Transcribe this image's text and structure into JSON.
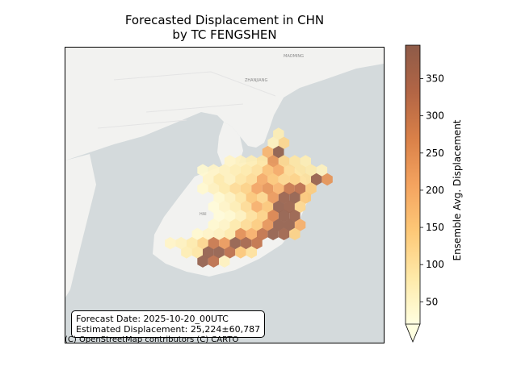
{
  "title": {
    "line1": "Forecasted Displacement in CHN",
    "line2": "by TC FENGSHEN"
  },
  "info": {
    "forecast_date": "Forecast Date: 2025-10-20_00UTC",
    "estimated": "Estimated Displacement: 25,224±60,787"
  },
  "attribution": "(C) OpenStreetMap contributors (C) CARTO",
  "map_labels": {
    "top_city": "MAOMING",
    "zhanjiang": "ZHANJIANG",
    "hai": "HAI"
  },
  "colorbar": {
    "label": "Ensemble Avg. Displacement",
    "min": 20,
    "max": 395,
    "ticks": [
      50,
      100,
      150,
      200,
      250,
      300,
      350
    ],
    "extend": "min",
    "colors": [
      "#ffffe0",
      "#fee9a8",
      "#fdc877",
      "#f4a35f",
      "#d98048",
      "#b26545",
      "#8e5b48"
    ]
  },
  "chart_data": {
    "type": "hexbin",
    "title": "Forecasted Displacement in CHN\nby TC FENGSHEN",
    "colorbar_label": "Ensemble Avg. Displacement",
    "value_range": [
      20,
      395
    ],
    "cells": [
      {
        "col": 2,
        "row": 0,
        "v": 70
      },
      {
        "col": 1,
        "row": 1,
        "v": 60
      },
      {
        "col": 2,
        "row": 1,
        "v": 120
      },
      {
        "col": 1,
        "row": 2,
        "v": 180
      },
      {
        "col": 2,
        "row": 2,
        "v": 395
      },
      {
        "col": -3,
        "row": 3,
        "v": 50
      },
      {
        "col": -2,
        "row": 3,
        "v": 60
      },
      {
        "col": -1,
        "row": 3,
        "v": 70
      },
      {
        "col": 0,
        "row": 3,
        "v": 90
      },
      {
        "col": 1,
        "row": 3,
        "v": 240
      },
      {
        "col": 2,
        "row": 3,
        "v": 120
      },
      {
        "col": 3,
        "row": 3,
        "v": 90
      },
      {
        "col": 4,
        "row": 3,
        "v": 70
      },
      {
        "col": -5,
        "row": 4,
        "v": 40
      },
      {
        "col": -4,
        "row": 4,
        "v": 50
      },
      {
        "col": -3,
        "row": 4,
        "v": 60
      },
      {
        "col": -2,
        "row": 4,
        "v": 70
      },
      {
        "col": -1,
        "row": 4,
        "v": 80
      },
      {
        "col": 0,
        "row": 4,
        "v": 100
      },
      {
        "col": 1,
        "row": 4,
        "v": 160
      },
      {
        "col": 2,
        "row": 4,
        "v": 200
      },
      {
        "col": 3,
        "row": 4,
        "v": 110
      },
      {
        "col": 4,
        "row": 4,
        "v": 90
      },
      {
        "col": 5,
        "row": 4,
        "v": 80
      },
      {
        "col": 6,
        "row": 4,
        "v": 60
      },
      {
        "col": -5,
        "row": 5,
        "v": 50
      },
      {
        "col": -4,
        "row": 5,
        "v": 80
      },
      {
        "col": -3,
        "row": 5,
        "v": 60
      },
      {
        "col": -2,
        "row": 5,
        "v": 90
      },
      {
        "col": -1,
        "row": 5,
        "v": 110
      },
      {
        "col": 0,
        "row": 5,
        "v": 200
      },
      {
        "col": 1,
        "row": 5,
        "v": 150
      },
      {
        "col": 2,
        "row": 5,
        "v": 120
      },
      {
        "col": 3,
        "row": 5,
        "v": 130
      },
      {
        "col": 4,
        "row": 5,
        "v": 100
      },
      {
        "col": 5,
        "row": 5,
        "v": 380
      },
      {
        "col": 6,
        "row": 5,
        "v": 240
      },
      {
        "col": -5,
        "row": 6,
        "v": 40
      },
      {
        "col": -4,
        "row": 6,
        "v": 60
      },
      {
        "col": -3,
        "row": 6,
        "v": 80
      },
      {
        "col": -2,
        "row": 6,
        "v": 110
      },
      {
        "col": -1,
        "row": 6,
        "v": 130
      },
      {
        "col": 0,
        "row": 6,
        "v": 210
      },
      {
        "col": 1,
        "row": 6,
        "v": 240
      },
      {
        "col": 2,
        "row": 6,
        "v": 180
      },
      {
        "col": 3,
        "row": 6,
        "v": 300
      },
      {
        "col": 4,
        "row": 6,
        "v": 320
      },
      {
        "col": 5,
        "row": 6,
        "v": 140
      },
      {
        "col": -4,
        "row": 7,
        "v": 40
      },
      {
        "col": -3,
        "row": 7,
        "v": 60
      },
      {
        "col": -2,
        "row": 7,
        "v": 90
      },
      {
        "col": -1,
        "row": 7,
        "v": 150
      },
      {
        "col": 0,
        "row": 7,
        "v": 120
      },
      {
        "col": 1,
        "row": 7,
        "v": 230
      },
      {
        "col": 2,
        "row": 7,
        "v": 380
      },
      {
        "col": 3,
        "row": 7,
        "v": 390
      },
      {
        "col": 4,
        "row": 7,
        "v": 150
      },
      {
        "col": -4,
        "row": 8,
        "v": 30
      },
      {
        "col": -3,
        "row": 8,
        "v": 50
      },
      {
        "col": -2,
        "row": 8,
        "v": 70
      },
      {
        "col": -1,
        "row": 8,
        "v": 110
      },
      {
        "col": 0,
        "row": 8,
        "v": 190
      },
      {
        "col": 1,
        "row": 8,
        "v": 150
      },
      {
        "col": 2,
        "row": 8,
        "v": 390
      },
      {
        "col": 3,
        "row": 8,
        "v": 380
      },
      {
        "col": 4,
        "row": 8,
        "v": 120
      },
      {
        "col": -4,
        "row": 9,
        "v": 30
      },
      {
        "col": -3,
        "row": 9,
        "v": 40
      },
      {
        "col": -2,
        "row": 9,
        "v": 60
      },
      {
        "col": -1,
        "row": 9,
        "v": 100
      },
      {
        "col": 0,
        "row": 9,
        "v": 130
      },
      {
        "col": 1,
        "row": 9,
        "v": 270
      },
      {
        "col": 2,
        "row": 9,
        "v": 390
      },
      {
        "col": 3,
        "row": 9,
        "v": 380
      },
      {
        "col": -4,
        "row": 10,
        "v": 40
      },
      {
        "col": -3,
        "row": 10,
        "v": 50
      },
      {
        "col": -2,
        "row": 10,
        "v": 80
      },
      {
        "col": -1,
        "row": 10,
        "v": 110
      },
      {
        "col": 0,
        "row": 10,
        "v": 140
      },
      {
        "col": 1,
        "row": 10,
        "v": 240
      },
      {
        "col": 2,
        "row": 10,
        "v": 390
      },
      {
        "col": 3,
        "row": 10,
        "v": 390
      },
      {
        "col": 4,
        "row": 10,
        "v": 190
      },
      {
        "col": -6,
        "row": 11,
        "v": 40
      },
      {
        "col": -5,
        "row": 11,
        "v": 50
      },
      {
        "col": -4,
        "row": 11,
        "v": 60
      },
      {
        "col": -3,
        "row": 11,
        "v": 80
      },
      {
        "col": -2,
        "row": 11,
        "v": 250
      },
      {
        "col": -1,
        "row": 11,
        "v": 190
      },
      {
        "col": 0,
        "row": 11,
        "v": 310
      },
      {
        "col": 1,
        "row": 11,
        "v": 390
      },
      {
        "col": 2,
        "row": 11,
        "v": 370
      },
      {
        "col": 3,
        "row": 11,
        "v": 130
      },
      {
        "col": -8,
        "row": 12,
        "v": 50
      },
      {
        "col": -7,
        "row": 12,
        "v": 60
      },
      {
        "col": -6,
        "row": 12,
        "v": 80
      },
      {
        "col": -5,
        "row": 12,
        "v": 120
      },
      {
        "col": -4,
        "row": 12,
        "v": 300
      },
      {
        "col": -3,
        "row": 12,
        "v": 230
      },
      {
        "col": -2,
        "row": 12,
        "v": 390
      },
      {
        "col": -1,
        "row": 12,
        "v": 360
      },
      {
        "col": 0,
        "row": 12,
        "v": 310
      },
      {
        "col": -7,
        "row": 13,
        "v": 70
      },
      {
        "col": -6,
        "row": 13,
        "v": 90
      },
      {
        "col": -5,
        "row": 13,
        "v": 390
      },
      {
        "col": -4,
        "row": 13,
        "v": 390
      },
      {
        "col": -3,
        "row": 13,
        "v": 320
      },
      {
        "col": -2,
        "row": 13,
        "v": 150
      },
      {
        "col": -1,
        "row": 13,
        "v": 100
      },
      {
        "col": -5,
        "row": 14,
        "v": 390
      },
      {
        "col": -4,
        "row": 14,
        "v": 320
      },
      {
        "col": -3,
        "row": 14,
        "v": 60
      }
    ]
  }
}
